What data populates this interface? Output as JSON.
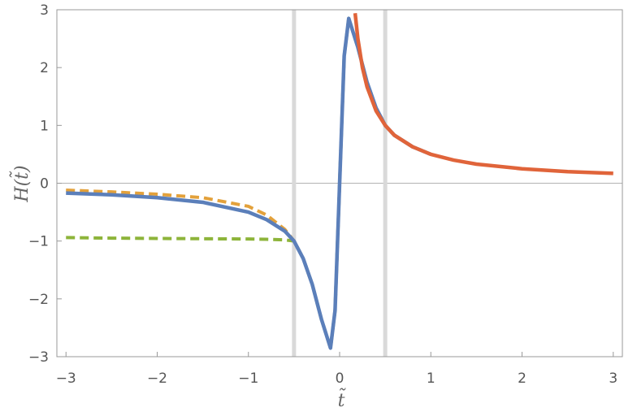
{
  "chart_data": {
    "type": "line",
    "title": "",
    "xlabel": "t̃",
    "ylabel": "H(t̃)",
    "xlim": [
      -3.1,
      3.1
    ],
    "ylim": [
      -3,
      3
    ],
    "xticks": [
      -3,
      -2,
      -1,
      0,
      1,
      2,
      3
    ],
    "yticks": [
      -3,
      -2,
      -1,
      0,
      1,
      2,
      3
    ],
    "xtick_labels": [
      "−3",
      "−2",
      "−1",
      "0",
      "1",
      "2",
      "3"
    ],
    "ytick_labels": [
      "−3",
      "−2",
      "−1",
      "0",
      "1",
      "2",
      "3"
    ],
    "grid": false,
    "vertical_lines": [
      -0.5,
      0.5
    ],
    "series": [
      {
        "color": "#e3a13b",
        "style": "dashed",
        "x": [
          -3.0,
          -2.5,
          -2.0,
          -1.5,
          -1.0,
          -0.8,
          -0.6,
          -0.5,
          -0.4,
          -0.3,
          -0.2,
          -0.1,
          -0.05,
          0.0,
          0.05,
          0.1,
          0.2,
          0.3,
          0.4,
          0.5
        ],
        "y": [
          -0.12,
          -0.15,
          -0.19,
          -0.25,
          -0.4,
          -0.55,
          -0.8,
          -1.0,
          -1.3,
          -1.75,
          -2.35,
          -2.85,
          -2.2,
          0.0,
          2.2,
          2.85,
          2.35,
          1.75,
          1.3,
          1.0
        ]
      },
      {
        "color": "#8db43a",
        "style": "dashed",
        "x": [
          -3.0,
          -2.5,
          -2.0,
          -1.5,
          -1.0,
          -0.8,
          -0.6,
          -0.5,
          -0.4,
          -0.3,
          -0.2,
          -0.1,
          -0.05,
          0.0,
          0.05,
          0.1,
          0.2,
          0.3,
          0.4,
          0.5
        ],
        "y": [
          -0.94,
          -0.95,
          -0.955,
          -0.96,
          -0.965,
          -0.97,
          -0.98,
          -1.0,
          -1.3,
          -1.75,
          -2.35,
          -2.85,
          -2.2,
          0.0,
          2.2,
          2.85,
          2.35,
          1.75,
          1.3,
          1.0
        ]
      },
      {
        "color": "#5b7fba",
        "style": "solid",
        "x": [
          -3.0,
          -2.5,
          -2.0,
          -1.5,
          -1.0,
          -0.8,
          -0.6,
          -0.5,
          -0.4,
          -0.3,
          -0.2,
          -0.1,
          -0.05,
          0.0,
          0.05,
          0.1,
          0.2,
          0.3,
          0.4,
          0.5,
          0.6,
          0.8,
          1.0
        ],
        "y": [
          -0.17,
          -0.2,
          -0.25,
          -0.33,
          -0.5,
          -0.63,
          -0.83,
          -1.0,
          -1.3,
          -1.75,
          -2.35,
          -2.85,
          -2.2,
          0.0,
          2.2,
          2.85,
          2.35,
          1.75,
          1.3,
          1.0,
          0.83,
          0.63,
          0.5
        ]
      },
      {
        "color": "#e0643a",
        "style": "solid",
        "x": [
          0.17,
          0.2,
          0.25,
          0.3,
          0.4,
          0.5,
          0.6,
          0.8,
          1.0,
          1.25,
          1.5,
          2.0,
          2.5,
          3.0
        ],
        "y": [
          2.94,
          2.5,
          2.0,
          1.67,
          1.25,
          1.0,
          0.83,
          0.63,
          0.5,
          0.4,
          0.33,
          0.25,
          0.2,
          0.17
        ]
      }
    ]
  }
}
